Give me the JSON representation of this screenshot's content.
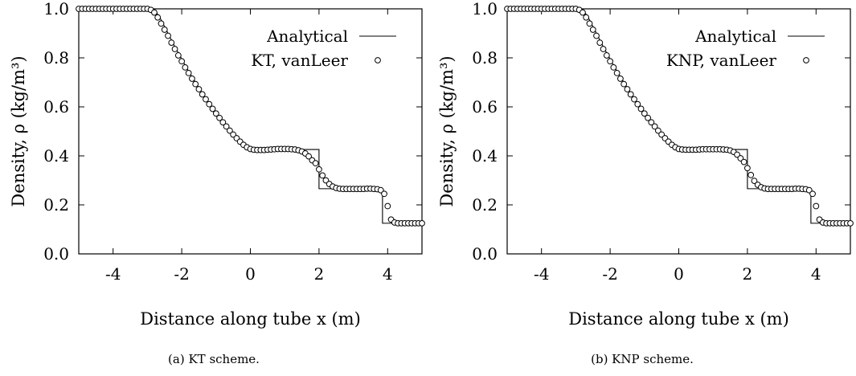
{
  "chart_data": [
    {
      "type": "line",
      "xlabel": "Distance along tube x (m)",
      "ylabel": "Density, ρ (kg/m³)",
      "xlim": [
        -5,
        5
      ],
      "ylim": [
        0.0,
        1.0
      ],
      "xticks": [
        "-4",
        "-2",
        "0",
        "2",
        "4"
      ],
      "xtick_values": [
        -4,
        -2,
        0,
        2,
        4
      ],
      "yticks": [
        "0.0",
        "0.2",
        "0.4",
        "0.6",
        "0.8",
        "1.0"
      ],
      "ytick_values": [
        0.0,
        0.2,
        0.4,
        0.6,
        0.8,
        1.0
      ],
      "legend_position": "top-right",
      "caption": "(a) KT scheme.",
      "series": [
        {
          "name": "Analytical",
          "style": "line",
          "x": [
            -5,
            -2.8,
            -2.6,
            -2.4,
            -2.2,
            -2.0,
            -1.8,
            -1.6,
            -1.4,
            -1.2,
            -1.0,
            -0.8,
            -0.6,
            -0.4,
            -0.2,
            0.0,
            0.07,
            2.0,
            2.0,
            3.85,
            3.85,
            5
          ],
          "y": [
            1.0,
            1.0,
            0.955,
            0.9,
            0.845,
            0.795,
            0.745,
            0.7,
            0.655,
            0.615,
            0.575,
            0.535,
            0.5,
            0.47,
            0.445,
            0.43,
            0.426,
            0.426,
            0.266,
            0.266,
            0.125,
            0.125
          ]
        },
        {
          "name": "KT, vanLeer",
          "style": "circles",
          "x": [
            -5.0,
            -4.9,
            -4.8,
            -4.7,
            -4.6,
            -4.5,
            -4.4,
            -4.3,
            -4.2,
            -4.1,
            -4.0,
            -3.9,
            -3.8,
            -3.7,
            -3.6,
            -3.5,
            -3.4,
            -3.3,
            -3.2,
            -3.1,
            -3.0,
            -2.9,
            -2.8,
            -2.7,
            -2.6,
            -2.5,
            -2.4,
            -2.3,
            -2.2,
            -2.1,
            -2.0,
            -1.9,
            -1.8,
            -1.7,
            -1.6,
            -1.5,
            -1.4,
            -1.3,
            -1.2,
            -1.1,
            -1.0,
            -0.9,
            -0.8,
            -0.7,
            -0.6,
            -0.5,
            -0.4,
            -0.3,
            -0.2,
            -0.1,
            0.0,
            0.1,
            0.2,
            0.3,
            0.4,
            0.5,
            0.6,
            0.7,
            0.8,
            0.9,
            1.0,
            1.1,
            1.2,
            1.3,
            1.4,
            1.5,
            1.6,
            1.7,
            1.8,
            1.9,
            2.0,
            2.1,
            2.2,
            2.3,
            2.4,
            2.5,
            2.6,
            2.7,
            2.8,
            2.9,
            3.0,
            3.1,
            3.2,
            3.3,
            3.4,
            3.5,
            3.6,
            3.7,
            3.8,
            3.9,
            4.0,
            4.1,
            4.2,
            4.3,
            4.4,
            4.5,
            4.6,
            4.7,
            4.8,
            4.9,
            5.0
          ],
          "y": [
            1.0,
            1.0,
            1.0,
            1.0,
            1.0,
            1.0,
            1.0,
            1.0,
            1.0,
            1.0,
            1.0,
            1.0,
            1.0,
            1.0,
            1.0,
            1.0,
            1.0,
            1.0,
            1.0,
            1.0,
            1.0,
            0.996,
            0.985,
            0.965,
            0.94,
            0.915,
            0.89,
            0.862,
            0.836,
            0.81,
            0.786,
            0.761,
            0.738,
            0.715,
            0.693,
            0.672,
            0.651,
            0.631,
            0.611,
            0.592,
            0.573,
            0.555,
            0.537,
            0.52,
            0.503,
            0.487,
            0.472,
            0.458,
            0.445,
            0.435,
            0.428,
            0.425,
            0.424,
            0.424,
            0.424,
            0.425,
            0.426,
            0.427,
            0.428,
            0.428,
            0.428,
            0.428,
            0.427,
            0.426,
            0.423,
            0.418,
            0.41,
            0.398,
            0.382,
            0.37,
            0.345,
            0.32,
            0.3,
            0.285,
            0.275,
            0.269,
            0.266,
            0.265,
            0.265,
            0.265,
            0.265,
            0.265,
            0.265,
            0.265,
            0.266,
            0.266,
            0.265,
            0.264,
            0.26,
            0.245,
            0.195,
            0.14,
            0.128,
            0.125,
            0.125,
            0.125,
            0.125,
            0.125,
            0.125,
            0.125,
            0.125
          ]
        }
      ]
    },
    {
      "type": "line",
      "xlabel": "Distance along tube x (m)",
      "ylabel": "Density, ρ (kg/m³)",
      "xlim": [
        -5,
        5
      ],
      "ylim": [
        0.0,
        1.0
      ],
      "xticks": [
        "-4",
        "-2",
        "0",
        "2",
        "4"
      ],
      "xtick_values": [
        -4,
        -2,
        0,
        2,
        4
      ],
      "yticks": [
        "0.0",
        "0.2",
        "0.4",
        "0.6",
        "0.8",
        "1.0"
      ],
      "ytick_values": [
        0.0,
        0.2,
        0.4,
        0.6,
        0.8,
        1.0
      ],
      "legend_position": "top-right",
      "caption": "(b) KNP scheme.",
      "series": [
        {
          "name": "Analytical",
          "style": "line",
          "x": [
            -5,
            -2.8,
            -2.6,
            -2.4,
            -2.2,
            -2.0,
            -1.8,
            -1.6,
            -1.4,
            -1.2,
            -1.0,
            -0.8,
            -0.6,
            -0.4,
            -0.2,
            0.0,
            0.07,
            2.0,
            2.0,
            3.85,
            3.85,
            5
          ],
          "y": [
            1.0,
            1.0,
            0.955,
            0.9,
            0.845,
            0.795,
            0.745,
            0.7,
            0.655,
            0.615,
            0.575,
            0.535,
            0.5,
            0.47,
            0.445,
            0.43,
            0.426,
            0.426,
            0.266,
            0.266,
            0.125,
            0.125
          ]
        },
        {
          "name": "KNP, vanLeer",
          "style": "circles",
          "x": [
            -5.0,
            -4.9,
            -4.8,
            -4.7,
            -4.6,
            -4.5,
            -4.4,
            -4.3,
            -4.2,
            -4.1,
            -4.0,
            -3.9,
            -3.8,
            -3.7,
            -3.6,
            -3.5,
            -3.4,
            -3.3,
            -3.2,
            -3.1,
            -3.0,
            -2.9,
            -2.8,
            -2.7,
            -2.6,
            -2.5,
            -2.4,
            -2.3,
            -2.2,
            -2.1,
            -2.0,
            -1.9,
            -1.8,
            -1.7,
            -1.6,
            -1.5,
            -1.4,
            -1.3,
            -1.2,
            -1.1,
            -1.0,
            -0.9,
            -0.8,
            -0.7,
            -0.6,
            -0.5,
            -0.4,
            -0.3,
            -0.2,
            -0.1,
            0.0,
            0.1,
            0.2,
            0.3,
            0.4,
            0.5,
            0.6,
            0.7,
            0.8,
            0.9,
            1.0,
            1.1,
            1.2,
            1.3,
            1.4,
            1.5,
            1.6,
            1.7,
            1.8,
            1.9,
            2.0,
            2.1,
            2.2,
            2.3,
            2.4,
            2.5,
            2.6,
            2.7,
            2.8,
            2.9,
            3.0,
            3.1,
            3.2,
            3.3,
            3.4,
            3.5,
            3.6,
            3.7,
            3.8,
            3.9,
            4.0,
            4.1,
            4.2,
            4.3,
            4.4,
            4.5,
            4.6,
            4.7,
            4.8,
            4.9,
            5.0
          ],
          "y": [
            1.0,
            1.0,
            1.0,
            1.0,
            1.0,
            1.0,
            1.0,
            1.0,
            1.0,
            1.0,
            1.0,
            1.0,
            1.0,
            1.0,
            1.0,
            1.0,
            1.0,
            1.0,
            1.0,
            1.0,
            1.0,
            0.996,
            0.985,
            0.965,
            0.94,
            0.915,
            0.89,
            0.862,
            0.836,
            0.81,
            0.786,
            0.761,
            0.738,
            0.715,
            0.693,
            0.672,
            0.651,
            0.631,
            0.611,
            0.592,
            0.573,
            0.555,
            0.537,
            0.52,
            0.503,
            0.487,
            0.472,
            0.458,
            0.445,
            0.435,
            0.428,
            0.426,
            0.425,
            0.425,
            0.425,
            0.425,
            0.426,
            0.427,
            0.427,
            0.427,
            0.427,
            0.427,
            0.427,
            0.426,
            0.425,
            0.422,
            0.416,
            0.405,
            0.39,
            0.375,
            0.35,
            0.322,
            0.298,
            0.282,
            0.272,
            0.267,
            0.265,
            0.265,
            0.265,
            0.265,
            0.265,
            0.265,
            0.265,
            0.265,
            0.266,
            0.266,
            0.265,
            0.264,
            0.26,
            0.245,
            0.195,
            0.14,
            0.128,
            0.125,
            0.125,
            0.125,
            0.125,
            0.125,
            0.125,
            0.125,
            0.125
          ]
        }
      ]
    }
  ]
}
